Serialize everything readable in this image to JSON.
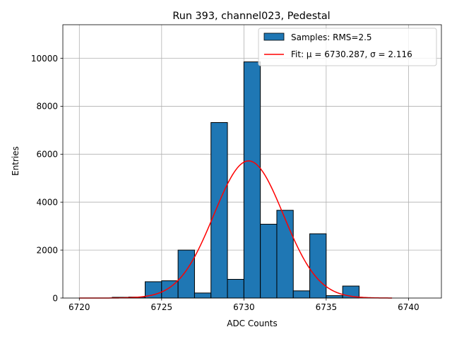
{
  "chart_data": {
    "type": "bar",
    "title": "Run 393, channel023, Pedestal",
    "xlabel": "ADC Counts",
    "ylabel": "Entries",
    "xlim": [
      6719.0,
      6742.0
    ],
    "ylim": [
      0,
      11400
    ],
    "xticks": [
      6720,
      6725,
      6730,
      6735,
      6740
    ],
    "yticks": [
      0,
      2000,
      4000,
      6000,
      8000,
      10000
    ],
    "grid": true,
    "legend_position": "top-right",
    "bar_color": "#1f77b4",
    "fit_color": "#ff0000",
    "histogram": {
      "name": "Samples: RMS=2.5",
      "bins": [
        {
          "x0": 6722.0,
          "x1": 6723.0,
          "value": 30
        },
        {
          "x0": 6723.0,
          "x1": 6724.0,
          "value": 40
        },
        {
          "x0": 6724.0,
          "x1": 6725.0,
          "value": 680
        },
        {
          "x0": 6725.0,
          "x1": 6726.0,
          "value": 720
        },
        {
          "x0": 6726.0,
          "x1": 6727.0,
          "value": 2000
        },
        {
          "x0": 6727.0,
          "x1": 6728.0,
          "value": 210
        },
        {
          "x0": 6728.0,
          "x1": 6729.0,
          "value": 7320
        },
        {
          "x0": 6729.0,
          "x1": 6730.0,
          "value": 780
        },
        {
          "x0": 6730.0,
          "x1": 6731.0,
          "value": 9850
        },
        {
          "x0": 6731.0,
          "x1": 6732.0,
          "value": 3080
        },
        {
          "x0": 6732.0,
          "x1": 6733.0,
          "value": 3660
        },
        {
          "x0": 6733.0,
          "x1": 6734.0,
          "value": 300
        },
        {
          "x0": 6734.0,
          "x1": 6735.0,
          "value": 2680
        },
        {
          "x0": 6735.0,
          "x1": 6736.0,
          "value": 100
        },
        {
          "x0": 6736.0,
          "x1": 6737.0,
          "value": 500
        }
      ]
    },
    "fit": {
      "name": "Fit: μ = 6730.287, σ = 2.116",
      "mu": 6730.287,
      "sigma": 2.116,
      "amplitude": 5720,
      "x_range": [
        6720.0,
        6739.0
      ]
    }
  }
}
